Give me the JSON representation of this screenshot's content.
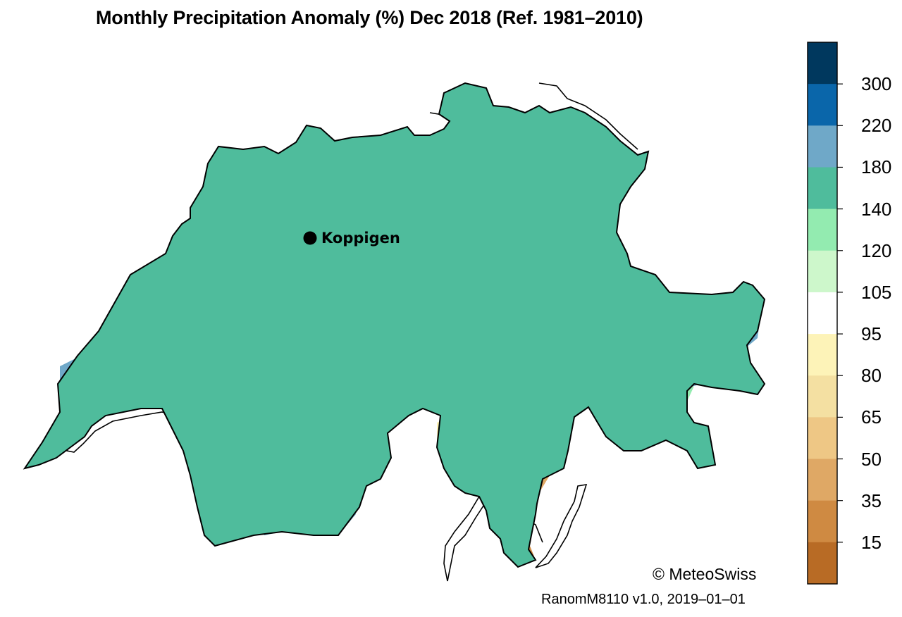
{
  "title": "Monthly Precipitation Anomaly (%) Dec 2018  (Ref. 1981–2010)",
  "station": {
    "name": "Koppigen"
  },
  "copyright": "© MeteoSwiss",
  "version": "RanomM8110 v1.0, 2019–01–01",
  "colors": {
    "c0": "#b86b25",
    "c15": "#cf8a42",
    "c35": "#dfa865",
    "c50": "#eec785",
    "c65": "#f4e0a2",
    "c80": "#fdf3b8",
    "c95": "#ffffff",
    "c105": "#cdf7cb",
    "c120": "#93ebb0",
    "c140": "#4fbc9c",
    "c180": "#6fa8c8",
    "c220": "#0a66aa",
    "c300": "#00385e",
    "border": "#000000"
  },
  "legend": {
    "labels": [
      "300",
      "220",
      "180",
      "140",
      "120",
      "105",
      "95",
      "80",
      "65",
      "50",
      "35",
      "15"
    ],
    "bins": [
      "c300",
      "c220",
      "c180",
      "c140",
      "c120",
      "c105",
      "c95",
      "c80",
      "c65",
      "c50",
      "c35",
      "c15",
      "c0"
    ]
  }
}
